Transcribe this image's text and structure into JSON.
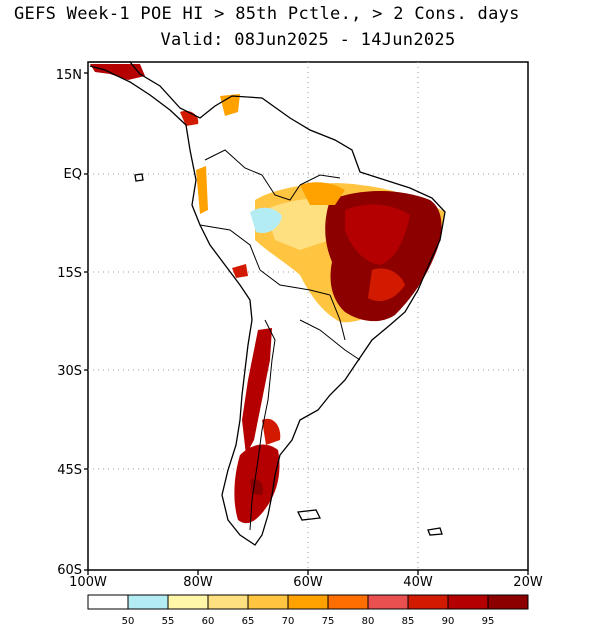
{
  "title_line1": "GEFS Week-1 POE HI > 85th Pctle., > 2 Cons. days",
  "title_line2": "Valid: 08Jun2025 - 14Jun2025",
  "axes": {
    "y_ticks": [
      "15N",
      "EQ",
      "15S",
      "30S",
      "45S",
      "60S"
    ],
    "x_ticks": [
      "100W",
      "80W",
      "60W",
      "40W",
      "20W"
    ]
  },
  "colorbar": {
    "labels": [
      "50",
      "55",
      "60",
      "65",
      "70",
      "75",
      "80",
      "85",
      "90",
      "95"
    ],
    "colors": [
      "#ffffff",
      "#b4ecf4",
      "#fff6a8",
      "#ffe080",
      "#ffc440",
      "#ffa200",
      "#ff6e00",
      "#ea5050",
      "#d21a00",
      "#b40000",
      "#8c0000"
    ]
  }
}
